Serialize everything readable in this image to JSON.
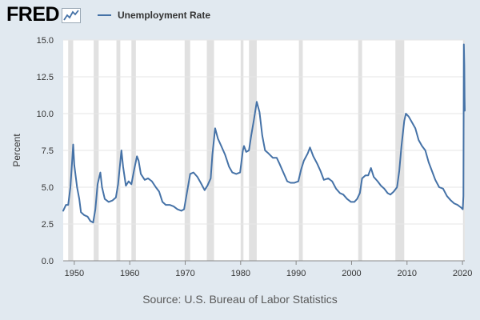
{
  "header": {
    "logo_text": "FRED",
    "legend_label": "Unemployment Rate",
    "series_color": "#4572a7"
  },
  "source": "Source: U.S. Bureau of Labor Statistics",
  "chart_data": {
    "type": "line",
    "title": "",
    "xlabel": "",
    "ylabel": "Percent",
    "xlim": [
      1948.0,
      2020.42
    ],
    "ylim": [
      0,
      15
    ],
    "y_ticks": [
      0.0,
      2.5,
      5.0,
      7.5,
      10.0,
      12.5,
      15.0
    ],
    "y_tick_labels": [
      "0.0",
      "2.5",
      "5.0",
      "7.5",
      "10.0",
      "12.5",
      "15.0"
    ],
    "x_ticks": [
      1950,
      1960,
      1970,
      1980,
      1990,
      2000,
      2010,
      2020
    ],
    "x_tick_labels": [
      "1950",
      "1960",
      "1970",
      "1980",
      "1990",
      "2000",
      "2010",
      "2020"
    ],
    "grid": true,
    "recessions": [
      [
        1948.9,
        1949.8
      ],
      [
        1953.5,
        1954.4
      ],
      [
        1957.6,
        1958.3
      ],
      [
        1960.3,
        1961.1
      ],
      [
        1969.9,
        1970.9
      ],
      [
        1973.9,
        1975.2
      ],
      [
        1980.0,
        1980.5
      ],
      [
        1981.5,
        1982.9
      ],
      [
        1990.5,
        1991.2
      ],
      [
        2001.2,
        2001.9
      ],
      [
        2007.9,
        2009.5
      ],
      [
        2020.1,
        2020.4
      ]
    ],
    "series": [
      {
        "name": "Unemployment Rate",
        "color": "#4572a7",
        "points": [
          [
            1948.0,
            3.4
          ],
          [
            1948.5,
            3.8
          ],
          [
            1948.9,
            3.8
          ],
          [
            1949.3,
            5.0
          ],
          [
            1949.6,
            6.7
          ],
          [
            1949.8,
            7.9
          ],
          [
            1950.0,
            6.5
          ],
          [
            1950.5,
            5.0
          ],
          [
            1950.9,
            4.2
          ],
          [
            1951.2,
            3.3
          ],
          [
            1951.8,
            3.1
          ],
          [
            1952.4,
            3.0
          ],
          [
            1952.9,
            2.7
          ],
          [
            1953.4,
            2.6
          ],
          [
            1953.8,
            3.5
          ],
          [
            1954.2,
            5.2
          ],
          [
            1954.7,
            6.0
          ],
          [
            1955.0,
            5.0
          ],
          [
            1955.5,
            4.2
          ],
          [
            1956.2,
            4.0
          ],
          [
            1956.9,
            4.1
          ],
          [
            1957.5,
            4.3
          ],
          [
            1957.9,
            5.2
          ],
          [
            1958.5,
            7.5
          ],
          [
            1958.8,
            6.4
          ],
          [
            1959.3,
            5.1
          ],
          [
            1959.8,
            5.4
          ],
          [
            1960.3,
            5.2
          ],
          [
            1960.8,
            6.2
          ],
          [
            1961.3,
            7.1
          ],
          [
            1961.6,
            6.8
          ],
          [
            1962.0,
            5.9
          ],
          [
            1962.7,
            5.5
          ],
          [
            1963.3,
            5.6
          ],
          [
            1964.0,
            5.4
          ],
          [
            1964.7,
            5.0
          ],
          [
            1965.3,
            4.7
          ],
          [
            1965.9,
            4.0
          ],
          [
            1966.5,
            3.8
          ],
          [
            1967.2,
            3.8
          ],
          [
            1967.9,
            3.7
          ],
          [
            1968.6,
            3.5
          ],
          [
            1969.3,
            3.4
          ],
          [
            1969.8,
            3.5
          ],
          [
            1970.3,
            4.6
          ],
          [
            1970.9,
            5.9
          ],
          [
            1971.5,
            6.0
          ],
          [
            1972.2,
            5.7
          ],
          [
            1972.8,
            5.3
          ],
          [
            1973.5,
            4.8
          ],
          [
            1974.0,
            5.1
          ],
          [
            1974.6,
            5.6
          ],
          [
            1974.9,
            7.2
          ],
          [
            1975.4,
            9.0
          ],
          [
            1975.9,
            8.3
          ],
          [
            1976.5,
            7.8
          ],
          [
            1977.2,
            7.2
          ],
          [
            1977.9,
            6.4
          ],
          [
            1978.5,
            6.0
          ],
          [
            1979.2,
            5.9
          ],
          [
            1979.9,
            6.0
          ],
          [
            1980.4,
            7.5
          ],
          [
            1980.6,
            7.8
          ],
          [
            1981.0,
            7.4
          ],
          [
            1981.5,
            7.5
          ],
          [
            1981.9,
            8.5
          ],
          [
            1982.4,
            9.6
          ],
          [
            1982.9,
            10.8
          ],
          [
            1983.4,
            10.1
          ],
          [
            1983.9,
            8.5
          ],
          [
            1984.4,
            7.5
          ],
          [
            1985.0,
            7.3
          ],
          [
            1985.8,
            7.0
          ],
          [
            1986.5,
            7.0
          ],
          [
            1987.0,
            6.6
          ],
          [
            1987.7,
            6.0
          ],
          [
            1988.4,
            5.4
          ],
          [
            1989.0,
            5.3
          ],
          [
            1989.7,
            5.3
          ],
          [
            1990.4,
            5.4
          ],
          [
            1990.9,
            6.2
          ],
          [
            1991.4,
            6.8
          ],
          [
            1992.1,
            7.3
          ],
          [
            1992.5,
            7.7
          ],
          [
            1993.1,
            7.1
          ],
          [
            1993.8,
            6.6
          ],
          [
            1994.4,
            6.1
          ],
          [
            1995.0,
            5.5
          ],
          [
            1995.8,
            5.6
          ],
          [
            1996.5,
            5.4
          ],
          [
            1997.2,
            4.9
          ],
          [
            1997.9,
            4.6
          ],
          [
            1998.5,
            4.5
          ],
          [
            1999.2,
            4.2
          ],
          [
            1999.9,
            4.0
          ],
          [
            2000.5,
            4.0
          ],
          [
            2001.0,
            4.2
          ],
          [
            2001.5,
            4.6
          ],
          [
            2001.9,
            5.6
          ],
          [
            2002.5,
            5.8
          ],
          [
            2003.0,
            5.8
          ],
          [
            2003.5,
            6.3
          ],
          [
            2004.0,
            5.7
          ],
          [
            2004.7,
            5.4
          ],
          [
            2005.3,
            5.1
          ],
          [
            2005.9,
            4.9
          ],
          [
            2006.5,
            4.6
          ],
          [
            2007.0,
            4.5
          ],
          [
            2007.6,
            4.7
          ],
          [
            2008.2,
            5.0
          ],
          [
            2008.6,
            6.1
          ],
          [
            2009.0,
            7.8
          ],
          [
            2009.5,
            9.5
          ],
          [
            2009.8,
            10.0
          ],
          [
            2010.3,
            9.8
          ],
          [
            2010.9,
            9.4
          ],
          [
            2011.5,
            9.0
          ],
          [
            2012.1,
            8.2
          ],
          [
            2012.7,
            7.8
          ],
          [
            2013.3,
            7.5
          ],
          [
            2013.9,
            6.7
          ],
          [
            2014.5,
            6.1
          ],
          [
            2015.1,
            5.5
          ],
          [
            2015.8,
            5.0
          ],
          [
            2016.5,
            4.9
          ],
          [
            2017.2,
            4.4
          ],
          [
            2017.9,
            4.1
          ],
          [
            2018.5,
            3.9
          ],
          [
            2019.1,
            3.8
          ],
          [
            2019.8,
            3.6
          ],
          [
            2020.05,
            3.5
          ],
          [
            2020.17,
            4.4
          ],
          [
            2020.25,
            14.7
          ],
          [
            2020.33,
            13.3
          ],
          [
            2020.38,
            11.1
          ],
          [
            2020.42,
            10.2
          ]
        ]
      }
    ]
  },
  "source_note": ""
}
